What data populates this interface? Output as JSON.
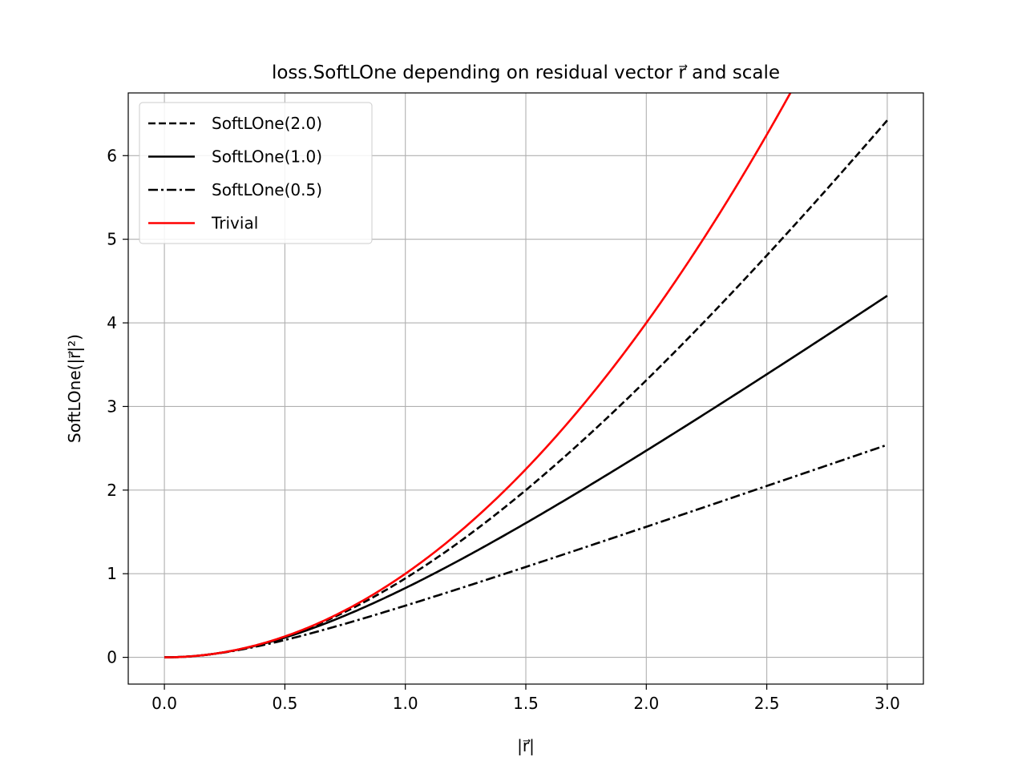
{
  "chart_data": {
    "type": "line",
    "title": "loss.SoftLOne depending on residual vector r⃗ and scale",
    "xlabel": "|r⃗|",
    "ylabel": "SoftLOne(|r⃗|²)",
    "xlim": [
      -0.15,
      3.15
    ],
    "ylim": [
      -0.32,
      6.75
    ],
    "xticks": [
      "0.0",
      "0.5",
      "1.0",
      "1.5",
      "2.0",
      "2.5",
      "3.0"
    ],
    "yticks": [
      "0",
      "1",
      "2",
      "3",
      "4",
      "5",
      "6"
    ],
    "grid": true,
    "legend_position": "top-left",
    "series": [
      {
        "name": "SoftLOne(2.0)",
        "scale": 2.0,
        "color": "#000000",
        "style": "dashed",
        "x": [
          0.0,
          0.25,
          0.5,
          0.75,
          1.0,
          1.25,
          1.5,
          1.75,
          2.0,
          2.25,
          2.5,
          2.75,
          3.0
        ],
        "y": [
          0.0,
          0.062,
          0.246,
          0.544,
          0.944,
          1.434,
          2.0,
          2.631,
          3.314,
          4.041,
          4.805,
          5.599,
          6.422
        ]
      },
      {
        "name": "SoftLOne(1.0)",
        "scale": 1.0,
        "color": "#000000",
        "style": "solid",
        "x": [
          0.0,
          0.25,
          0.5,
          0.75,
          1.0,
          1.25,
          1.5,
          1.75,
          2.0,
          2.25,
          2.5,
          2.75,
          3.0
        ],
        "y": [
          0.0,
          0.062,
          0.236,
          0.5,
          0.828,
          1.202,
          1.606,
          2.031,
          2.472,
          2.924,
          3.385,
          3.853,
          4.325
        ]
      },
      {
        "name": "SoftLOne(0.5)",
        "scale": 0.5,
        "color": "#000000",
        "style": "dashdot",
        "x": [
          0.0,
          0.25,
          0.5,
          0.75,
          1.0,
          1.25,
          1.5,
          1.75,
          2.0,
          2.25,
          2.5,
          2.75,
          3.0
        ],
        "y": [
          0.0,
          0.059,
          0.207,
          0.401,
          0.618,
          0.846,
          1.081,
          1.32,
          1.562,
          1.806,
          2.052,
          2.299,
          2.546
        ]
      },
      {
        "name": "Trivial",
        "color": "#ff0000",
        "style": "solid",
        "x": [
          0.0,
          0.25,
          0.5,
          0.75,
          1.0,
          1.25,
          1.5,
          1.75,
          2.0,
          2.25,
          2.5,
          2.6
        ],
        "y": [
          0.0,
          0.0625,
          0.25,
          0.5625,
          1.0,
          1.5625,
          2.25,
          3.0625,
          4.0,
          5.0625,
          6.25,
          6.76
        ]
      }
    ]
  }
}
